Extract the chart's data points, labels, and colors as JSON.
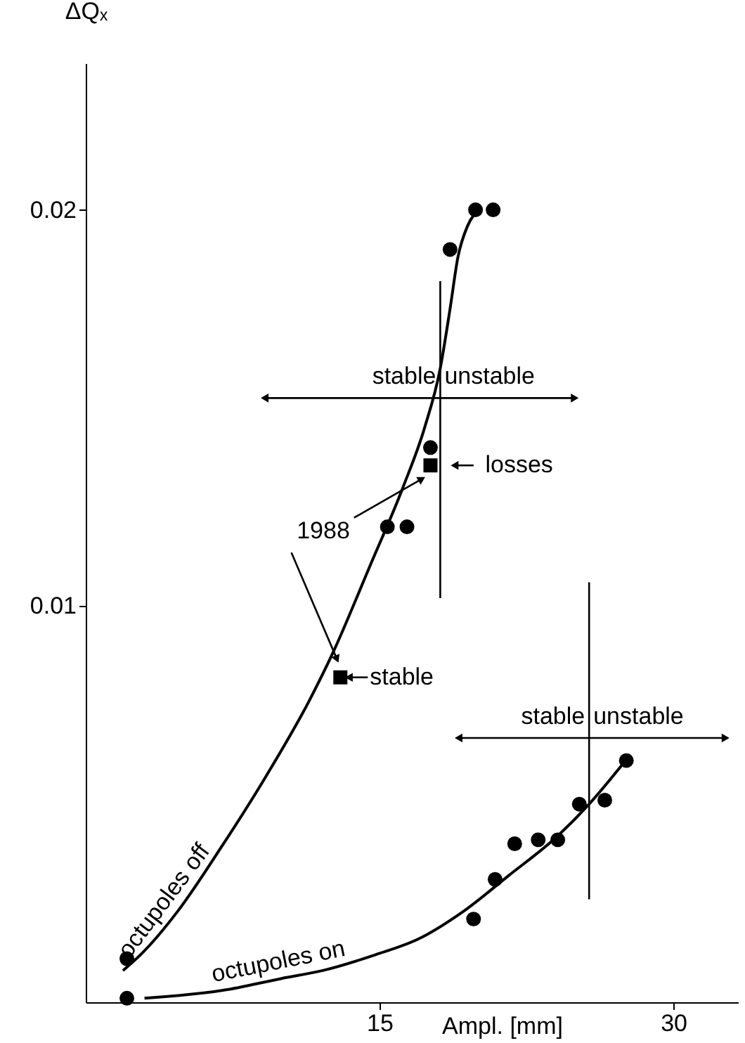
{
  "chart_data": {
    "type": "scatter",
    "xlabel": "Ampl. [mm]",
    "ylabel": "ΔQₓ",
    "xlim": [
      0,
      33.3
    ],
    "ylim": [
      0,
      0.0237
    ],
    "xticks": [
      15,
      30
    ],
    "yticks": [
      0.01,
      0.02
    ],
    "grid": false,
    "series": [
      {
        "name": "octupoles off",
        "type": "line",
        "color": "#000000",
        "marker": "none",
        "x": [
          1.9,
          2.8,
          4.7,
          6.9,
          9.2,
          11.4,
          12.6,
          14.5,
          16.2,
          17.3,
          18.1,
          18.6,
          19.0,
          19.5,
          20.1
        ],
        "values": [
          0.0008,
          0.0012,
          0.0023,
          0.0039,
          0.0057,
          0.0076,
          0.0088,
          0.011,
          0.013,
          0.0145,
          0.016,
          0.0175,
          0.0188,
          0.0196,
          0.02
        ]
      },
      {
        "name": "octupoles on",
        "type": "line",
        "color": "#000000",
        "marker": "none",
        "x": [
          3.0,
          7.0,
          10.0,
          12.1,
          14.8,
          17.0,
          19.3,
          21.6,
          24.1,
          25.7,
          27.4
        ],
        "values": [
          0.0001,
          0.0003,
          0.0006,
          0.0008,
          0.0012,
          0.0016,
          0.0023,
          0.0032,
          0.0042,
          0.005,
          0.006
        ]
      },
      {
        "marker": "circle",
        "color": "#000000",
        "x": [
          2.1,
          15.4,
          16.4,
          17.6,
          18.6,
          19.9,
          20.8
        ],
        "values": [
          0.0011,
          0.012,
          0.012,
          0.014,
          0.019,
          0.02,
          0.02
        ]
      },
      {
        "marker": "circle",
        "color": "#000000",
        "x": [
          2.1,
          19.8,
          20.9,
          21.9,
          23.1,
          24.1,
          25.2,
          26.5,
          27.6
        ],
        "values": [
          0.0001,
          0.0021,
          0.0031,
          0.004,
          0.0041,
          0.0041,
          0.005,
          0.0051,
          0.0061
        ]
      },
      {
        "marker": "square",
        "color": "#000000",
        "x": [
          17.6,
          13.0
        ],
        "values": [
          0.01355,
          0.0082
        ]
      },
      {
        "type": "line",
        "marker": "none",
        "color": "#000000",
        "x": [
          18.1,
          18.1
        ],
        "values": [
          0.0102,
          0.0182
        ]
      },
      {
        "type": "line",
        "marker": "none",
        "color": "#000000",
        "x": [
          25.7,
          25.7
        ],
        "values": [
          0.0026,
          0.0106
        ]
      },
      {
        "type": "line",
        "marker": "triangle",
        "color": "#000000",
        "x": [
          9.2,
          18.1,
          24.9
        ],
        "values": [
          0.01525,
          0.01525,
          0.01525
        ]
      },
      {
        "type": "line",
        "marker": "triangle",
        "color": "#000000",
        "x": [
          19.1,
          25.7,
          32.6
        ],
        "values": [
          0.00667,
          0.00667,
          0.00667
        ]
      },
      {
        "type": "line",
        "marker": "triangle",
        "color": "#000000",
        "x": [
          13.7,
          17.1
        ],
        "values": [
          0.01223,
          0.01319
        ]
      },
      {
        "type": "line",
        "marker": "triangle",
        "color": "#000000",
        "x": [
          10.5,
          12.8
        ],
        "values": [
          0.01135,
          0.00869
        ]
      },
      {
        "type": "line",
        "marker": "triangle",
        "color": "#000000",
        "x": [
          19.8,
          18.9
        ],
        "values": [
          0.01355,
          0.01355
        ]
      },
      {
        "type": "line",
        "marker": "triangle",
        "color": "#000000",
        "x": [
          14.4,
          13.5
        ],
        "values": [
          0.0082,
          0.0082
        ]
      }
    ],
    "annotations": [
      {
        "text": "stable",
        "x": 18.1,
        "y": 0.01525
      },
      {
        "text": "unstable",
        "x": 18.1,
        "y": 0.01525
      },
      {
        "text": "stable",
        "x": 25.7,
        "y": 0.00667
      },
      {
        "text": "unstable",
        "x": 25.7,
        "y": 0.00667
      },
      {
        "text": "losses",
        "x": 17.6,
        "y": 0.01355
      },
      {
        "text": "stable",
        "x": 13.0,
        "y": 0.0082
      },
      "1988"
    ]
  }
}
